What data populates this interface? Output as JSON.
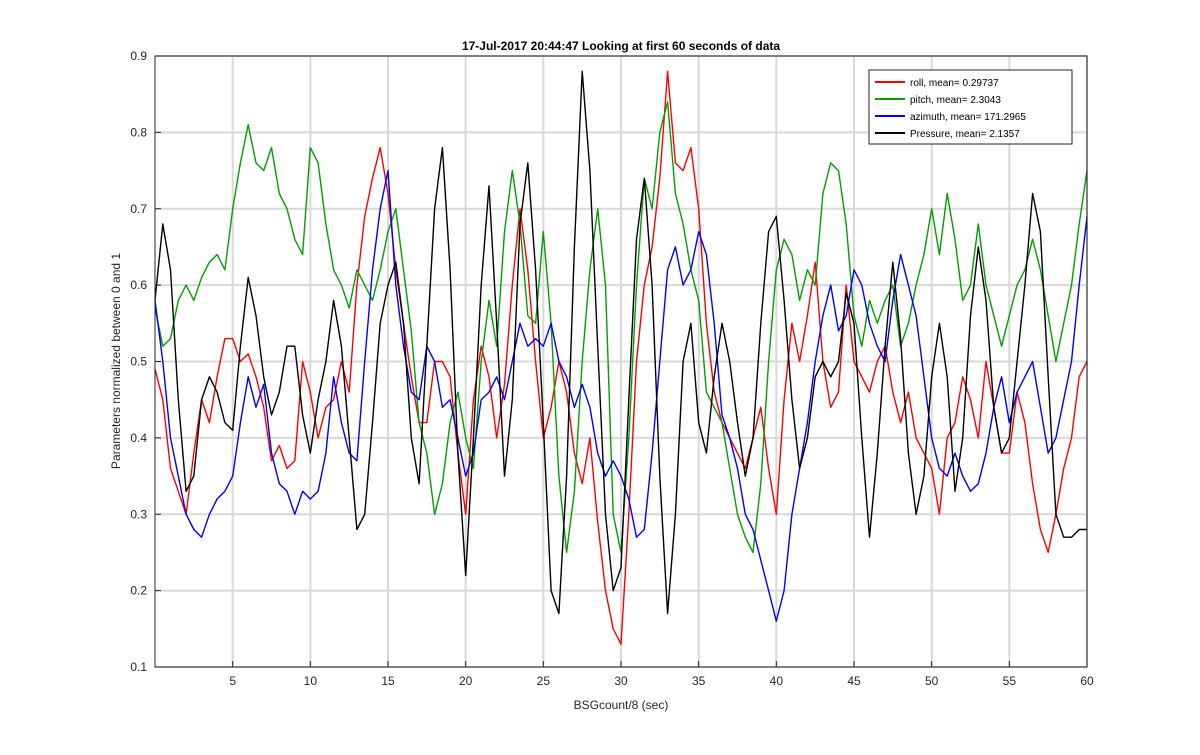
{
  "chart_data": {
    "type": "line",
    "title": "17-Jul-2017 20:44:47 Looking at first 60 seconds of data",
    "xlabel": "BSGcount/8 (sec)",
    "ylabel": "Parameters normalized between 0 and 1",
    "xlim": [
      0,
      60
    ],
    "ylim": [
      0.1,
      0.9
    ],
    "xticks": [
      5,
      10,
      15,
      20,
      25,
      30,
      35,
      40,
      45,
      50,
      55,
      60
    ],
    "yticks": [
      0.1,
      0.2,
      0.3,
      0.4,
      0.5,
      0.6,
      0.7,
      0.8,
      0.9
    ],
    "grid": true,
    "legend_position": "top-right",
    "series": [
      {
        "name": "roll, mean= 0.29737",
        "color": "#ff0000",
        "x": [
          0,
          0.5,
          1.0,
          1.5,
          2.0,
          2.5,
          3.0,
          3.5,
          4.0,
          4.5,
          5.0,
          5.5,
          6.0,
          6.5,
          7.0,
          7.5,
          8.0,
          8.5,
          9.0,
          9.5,
          10.0,
          10.5,
          11.0,
          11.5,
          12.0,
          12.5,
          13.0,
          13.5,
          14.0,
          14.5,
          15.0,
          15.5,
          16.0,
          16.5,
          17.0,
          17.5,
          18.0,
          18.5,
          19.0,
          19.5,
          20.0,
          20.5,
          21.0,
          21.5,
          22.0,
          22.5,
          23.0,
          23.5,
          24.0,
          24.5,
          25.0,
          25.5,
          26.0,
          26.5,
          27.0,
          27.5,
          28.0,
          28.5,
          29.0,
          29.5,
          30.0,
          30.5,
          31.0,
          31.5,
          32.0,
          32.5,
          33.0,
          33.5,
          34.0,
          34.5,
          35.0,
          35.5,
          36.0,
          36.5,
          37.0,
          37.5,
          38.0,
          38.5,
          39.0,
          39.5,
          40.0,
          40.5,
          41.0,
          41.5,
          42.0,
          42.5,
          43.0,
          43.5,
          44.0,
          44.5,
          45.0,
          45.5,
          46.0,
          46.5,
          47.0,
          47.5,
          48.0,
          48.5,
          49.0,
          49.5,
          50.0,
          50.5,
          51.0,
          51.5,
          52.0,
          52.5,
          53.0,
          53.5,
          54.0,
          54.5,
          55.0,
          55.5,
          56.0,
          56.5,
          57.0,
          57.5,
          58.0,
          58.5,
          59.0,
          59.5,
          60.0
        ],
        "values": [
          0.49,
          0.45,
          0.36,
          0.33,
          0.3,
          0.38,
          0.45,
          0.42,
          0.48,
          0.53,
          0.53,
          0.5,
          0.51,
          0.48,
          0.44,
          0.37,
          0.39,
          0.36,
          0.37,
          0.5,
          0.46,
          0.4,
          0.44,
          0.45,
          0.5,
          0.46,
          0.6,
          0.69,
          0.74,
          0.78,
          0.72,
          0.62,
          0.55,
          0.48,
          0.42,
          0.42,
          0.5,
          0.5,
          0.48,
          0.38,
          0.3,
          0.45,
          0.52,
          0.48,
          0.4,
          0.47,
          0.6,
          0.7,
          0.62,
          0.5,
          0.4,
          0.44,
          0.5,
          0.46,
          0.38,
          0.34,
          0.4,
          0.29,
          0.2,
          0.15,
          0.13,
          0.3,
          0.5,
          0.6,
          0.65,
          0.74,
          0.88,
          0.76,
          0.75,
          0.78,
          0.7,
          0.55,
          0.46,
          0.42,
          0.4,
          0.38,
          0.36,
          0.4,
          0.44,
          0.36,
          0.3,
          0.45,
          0.55,
          0.5,
          0.56,
          0.63,
          0.5,
          0.44,
          0.46,
          0.6,
          0.5,
          0.48,
          0.46,
          0.5,
          0.52,
          0.46,
          0.42,
          0.46,
          0.4,
          0.38,
          0.36,
          0.3,
          0.4,
          0.42,
          0.48,
          0.45,
          0.4,
          0.5,
          0.44,
          0.38,
          0.38,
          0.46,
          0.42,
          0.34,
          0.28,
          0.25,
          0.3,
          0.36,
          0.4,
          0.48,
          0.5
        ]
      },
      {
        "name": "pitch, mean= 2.3043",
        "color": "#00a000",
        "x": [
          0,
          0.5,
          1.0,
          1.5,
          2.0,
          2.5,
          3.0,
          3.5,
          4.0,
          4.5,
          5.0,
          5.5,
          6.0,
          6.5,
          7.0,
          7.5,
          8.0,
          8.5,
          9.0,
          9.5,
          10.0,
          10.5,
          11.0,
          11.5,
          12.0,
          12.5,
          13.0,
          13.5,
          14.0,
          14.5,
          15.0,
          15.5,
          16.0,
          16.5,
          17.0,
          17.5,
          18.0,
          18.5,
          19.0,
          19.5,
          20.0,
          20.5,
          21.0,
          21.5,
          22.0,
          22.5,
          23.0,
          23.5,
          24.0,
          24.5,
          25.0,
          25.5,
          26.0,
          26.5,
          27.0,
          27.5,
          28.0,
          28.5,
          29.0,
          29.5,
          30.0,
          30.5,
          31.0,
          31.5,
          32.0,
          32.5,
          33.0,
          33.5,
          34.0,
          34.5,
          35.0,
          35.5,
          36.0,
          36.5,
          37.0,
          37.5,
          38.0,
          38.5,
          39.0,
          39.5,
          40.0,
          40.5,
          41.0,
          41.5,
          42.0,
          42.5,
          43.0,
          43.5,
          44.0,
          44.5,
          45.0,
          45.5,
          46.0,
          46.5,
          47.0,
          47.5,
          48.0,
          48.5,
          49.0,
          49.5,
          50.0,
          50.5,
          51.0,
          51.5,
          52.0,
          52.5,
          53.0,
          53.5,
          54.0,
          54.5,
          55.0,
          55.5,
          56.0,
          56.5,
          57.0,
          57.5,
          58.0,
          58.5,
          59.0,
          59.5,
          60.0
        ],
        "values": [
          0.57,
          0.52,
          0.53,
          0.58,
          0.6,
          0.58,
          0.61,
          0.63,
          0.64,
          0.62,
          0.7,
          0.76,
          0.81,
          0.76,
          0.75,
          0.78,
          0.72,
          0.7,
          0.66,
          0.64,
          0.78,
          0.76,
          0.68,
          0.62,
          0.6,
          0.57,
          0.62,
          0.6,
          0.58,
          0.62,
          0.67,
          0.7,
          0.62,
          0.54,
          0.42,
          0.38,
          0.3,
          0.34,
          0.42,
          0.46,
          0.4,
          0.36,
          0.5,
          0.58,
          0.52,
          0.67,
          0.75,
          0.68,
          0.56,
          0.55,
          0.67,
          0.55,
          0.35,
          0.25,
          0.33,
          0.5,
          0.62,
          0.7,
          0.6,
          0.3,
          0.25,
          0.4,
          0.6,
          0.74,
          0.7,
          0.8,
          0.84,
          0.72,
          0.68,
          0.62,
          0.58,
          0.46,
          0.44,
          0.42,
          0.36,
          0.3,
          0.27,
          0.25,
          0.34,
          0.5,
          0.62,
          0.66,
          0.64,
          0.58,
          0.62,
          0.6,
          0.72,
          0.76,
          0.75,
          0.68,
          0.56,
          0.52,
          0.58,
          0.55,
          0.58,
          0.6,
          0.52,
          0.55,
          0.6,
          0.64,
          0.7,
          0.64,
          0.72,
          0.66,
          0.58,
          0.6,
          0.68,
          0.6,
          0.56,
          0.52,
          0.56,
          0.6,
          0.62,
          0.66,
          0.62,
          0.56,
          0.5,
          0.55,
          0.6,
          0.68,
          0.75
        ]
      },
      {
        "name": "azimuth, mean= 171.2965",
        "color": "#0000ff",
        "x": [
          0,
          0.5,
          1.0,
          1.5,
          2.0,
          2.5,
          3.0,
          3.5,
          4.0,
          4.5,
          5.0,
          5.5,
          6.0,
          6.5,
          7.0,
          7.5,
          8.0,
          8.5,
          9.0,
          9.5,
          10.0,
          10.5,
          11.0,
          11.5,
          12.0,
          12.5,
          13.0,
          13.5,
          14.0,
          14.5,
          15.0,
          15.5,
          16.0,
          16.5,
          17.0,
          17.5,
          18.0,
          18.5,
          19.0,
          19.5,
          20.0,
          20.5,
          21.0,
          21.5,
          22.0,
          22.5,
          23.0,
          23.5,
          24.0,
          24.5,
          25.0,
          25.5,
          26.0,
          26.5,
          27.0,
          27.5,
          28.0,
          28.5,
          29.0,
          29.5,
          30.0,
          30.5,
          31.0,
          31.5,
          32.0,
          32.5,
          33.0,
          33.5,
          34.0,
          34.5,
          35.0,
          35.5,
          36.0,
          36.5,
          37.0,
          37.5,
          38.0,
          38.5,
          39.0,
          39.5,
          40.0,
          40.5,
          41.0,
          41.5,
          42.0,
          42.5,
          43.0,
          43.5,
          44.0,
          44.5,
          45.0,
          45.5,
          46.0,
          46.5,
          47.0,
          47.5,
          48.0,
          48.5,
          49.0,
          49.5,
          50.0,
          50.5,
          51.0,
          51.5,
          52.0,
          52.5,
          53.0,
          53.5,
          54.0,
          54.5,
          55.0,
          55.5,
          56.0,
          56.5,
          57.0,
          57.5,
          58.0,
          58.5,
          59.0,
          59.5,
          60.0
        ],
        "values": [
          0.58,
          0.5,
          0.4,
          0.35,
          0.3,
          0.28,
          0.27,
          0.3,
          0.32,
          0.33,
          0.35,
          0.42,
          0.48,
          0.44,
          0.47,
          0.38,
          0.34,
          0.33,
          0.3,
          0.33,
          0.32,
          0.33,
          0.38,
          0.48,
          0.42,
          0.38,
          0.37,
          0.5,
          0.62,
          0.7,
          0.75,
          0.6,
          0.52,
          0.46,
          0.45,
          0.52,
          0.5,
          0.44,
          0.45,
          0.4,
          0.35,
          0.38,
          0.45,
          0.46,
          0.48,
          0.45,
          0.5,
          0.55,
          0.52,
          0.53,
          0.52,
          0.55,
          0.5,
          0.48,
          0.44,
          0.47,
          0.44,
          0.38,
          0.35,
          0.37,
          0.35,
          0.32,
          0.27,
          0.28,
          0.38,
          0.5,
          0.62,
          0.65,
          0.6,
          0.62,
          0.67,
          0.64,
          0.55,
          0.43,
          0.4,
          0.36,
          0.3,
          0.28,
          0.24,
          0.2,
          0.16,
          0.2,
          0.3,
          0.36,
          0.42,
          0.5,
          0.56,
          0.6,
          0.54,
          0.56,
          0.62,
          0.6,
          0.55,
          0.52,
          0.5,
          0.58,
          0.64,
          0.6,
          0.56,
          0.48,
          0.4,
          0.36,
          0.35,
          0.38,
          0.35,
          0.33,
          0.34,
          0.38,
          0.44,
          0.48,
          0.42,
          0.46,
          0.48,
          0.5,
          0.44,
          0.38,
          0.4,
          0.45,
          0.5,
          0.6,
          0.69
        ]
      },
      {
        "name": "Pressure, mean= 2.1357",
        "color": "#000000",
        "x": [
          0,
          0.5,
          1.0,
          1.5,
          2.0,
          2.5,
          3.0,
          3.5,
          4.0,
          4.5,
          5.0,
          5.5,
          6.0,
          6.5,
          7.0,
          7.5,
          8.0,
          8.5,
          9.0,
          9.5,
          10.0,
          10.5,
          11.0,
          11.5,
          12.0,
          12.5,
          13.0,
          13.5,
          14.0,
          14.5,
          15.0,
          15.5,
          16.0,
          16.5,
          17.0,
          17.5,
          18.0,
          18.5,
          19.0,
          19.5,
          20.0,
          20.5,
          21.0,
          21.5,
          22.0,
          22.5,
          23.0,
          23.5,
          24.0,
          24.5,
          25.0,
          25.5,
          26.0,
          26.5,
          27.0,
          27.5,
          28.0,
          28.5,
          29.0,
          29.5,
          30.0,
          30.5,
          31.0,
          31.5,
          32.0,
          32.5,
          33.0,
          33.5,
          34.0,
          34.5,
          35.0,
          35.5,
          36.0,
          36.5,
          37.0,
          37.5,
          38.0,
          38.5,
          39.0,
          39.5,
          40.0,
          40.5,
          41.0,
          41.5,
          42.0,
          42.5,
          43.0,
          43.5,
          44.0,
          44.5,
          45.0,
          45.5,
          46.0,
          46.5,
          47.0,
          47.5,
          48.0,
          48.5,
          49.0,
          49.5,
          50.0,
          50.5,
          51.0,
          51.5,
          52.0,
          52.5,
          53.0,
          53.5,
          54.0,
          54.5,
          55.0,
          55.5,
          56.0,
          56.5,
          57.0,
          57.5,
          58.0,
          58.5,
          59.0,
          59.5,
          60.0
        ],
        "values": [
          0.58,
          0.68,
          0.62,
          0.45,
          0.33,
          0.35,
          0.45,
          0.48,
          0.46,
          0.42,
          0.41,
          0.52,
          0.61,
          0.56,
          0.48,
          0.43,
          0.46,
          0.52,
          0.52,
          0.43,
          0.38,
          0.45,
          0.5,
          0.58,
          0.52,
          0.4,
          0.28,
          0.3,
          0.42,
          0.55,
          0.6,
          0.63,
          0.55,
          0.4,
          0.34,
          0.52,
          0.7,
          0.78,
          0.62,
          0.38,
          0.22,
          0.4,
          0.6,
          0.73,
          0.55,
          0.35,
          0.45,
          0.68,
          0.76,
          0.62,
          0.42,
          0.2,
          0.17,
          0.35,
          0.65,
          0.88,
          0.75,
          0.52,
          0.3,
          0.2,
          0.23,
          0.45,
          0.66,
          0.74,
          0.6,
          0.35,
          0.17,
          0.3,
          0.5,
          0.55,
          0.42,
          0.38,
          0.48,
          0.55,
          0.5,
          0.42,
          0.35,
          0.4,
          0.55,
          0.67,
          0.69,
          0.58,
          0.45,
          0.36,
          0.4,
          0.48,
          0.5,
          0.48,
          0.5,
          0.59,
          0.55,
          0.4,
          0.27,
          0.38,
          0.52,
          0.63,
          0.53,
          0.38,
          0.3,
          0.35,
          0.48,
          0.55,
          0.48,
          0.33,
          0.4,
          0.56,
          0.65,
          0.58,
          0.44,
          0.38,
          0.4,
          0.5,
          0.6,
          0.72,
          0.67,
          0.48,
          0.3,
          0.27,
          0.27,
          0.28,
          0.28
        ]
      }
    ]
  }
}
